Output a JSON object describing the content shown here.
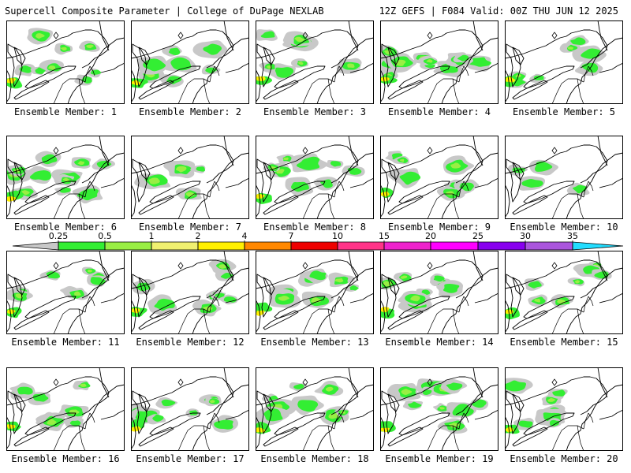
{
  "header": {
    "left": "Supercell Composite Parameter | College of DuPage NEXLAB",
    "right": "12Z GEFS | F084 Valid: 00Z THU JUN 12 2025"
  },
  "legend": {
    "labels": [
      "0.25",
      "0.5",
      "1",
      "2",
      "4",
      "7",
      "10",
      "15",
      "20",
      "25",
      "30",
      "35"
    ],
    "colors": [
      "#c8c8c8",
      "#33ee33",
      "#99ee44",
      "#f0f070",
      "#fff000",
      "#ff8800",
      "#ee0000",
      "#ff3388",
      "#ee22cc",
      "#ff00ff",
      "#8800ee",
      "#aa55dd",
      "#22ddff"
    ]
  },
  "panels": [
    {
      "label": "Ensemble Member: 1",
      "level": "moderate"
    },
    {
      "label": "Ensemble Member: 2",
      "level": "moderate"
    },
    {
      "label": "Ensemble Member: 3",
      "level": "moderate"
    },
    {
      "label": "Ensemble Member: 4",
      "level": "high"
    },
    {
      "label": "Ensemble Member: 5",
      "level": "moderate"
    },
    {
      "label": "Ensemble Member: 6",
      "level": "high"
    },
    {
      "label": "Ensemble Member: 7",
      "level": "low"
    },
    {
      "label": "Ensemble Member: 8",
      "level": "moderate"
    },
    {
      "label": "Ensemble Member: 9",
      "level": "moderate"
    },
    {
      "label": "Ensemble Member: 10",
      "level": "low"
    },
    {
      "label": "Ensemble Member: 11",
      "level": "moderate"
    },
    {
      "label": "Ensemble Member: 12",
      "level": "moderate"
    },
    {
      "label": "Ensemble Member: 13",
      "level": "moderate"
    },
    {
      "label": "Ensemble Member: 14",
      "level": "moderate"
    },
    {
      "label": "Ensemble Member: 15",
      "level": "moderate"
    },
    {
      "label": "Ensemble Member: 16",
      "level": "moderate"
    },
    {
      "label": "Ensemble Member: 17",
      "level": "moderate"
    },
    {
      "label": "Ensemble Member: 18",
      "level": "moderate"
    },
    {
      "label": "Ensemble Member: 19",
      "level": "high"
    },
    {
      "label": "Ensemble Member: 20",
      "level": "moderate"
    }
  ]
}
